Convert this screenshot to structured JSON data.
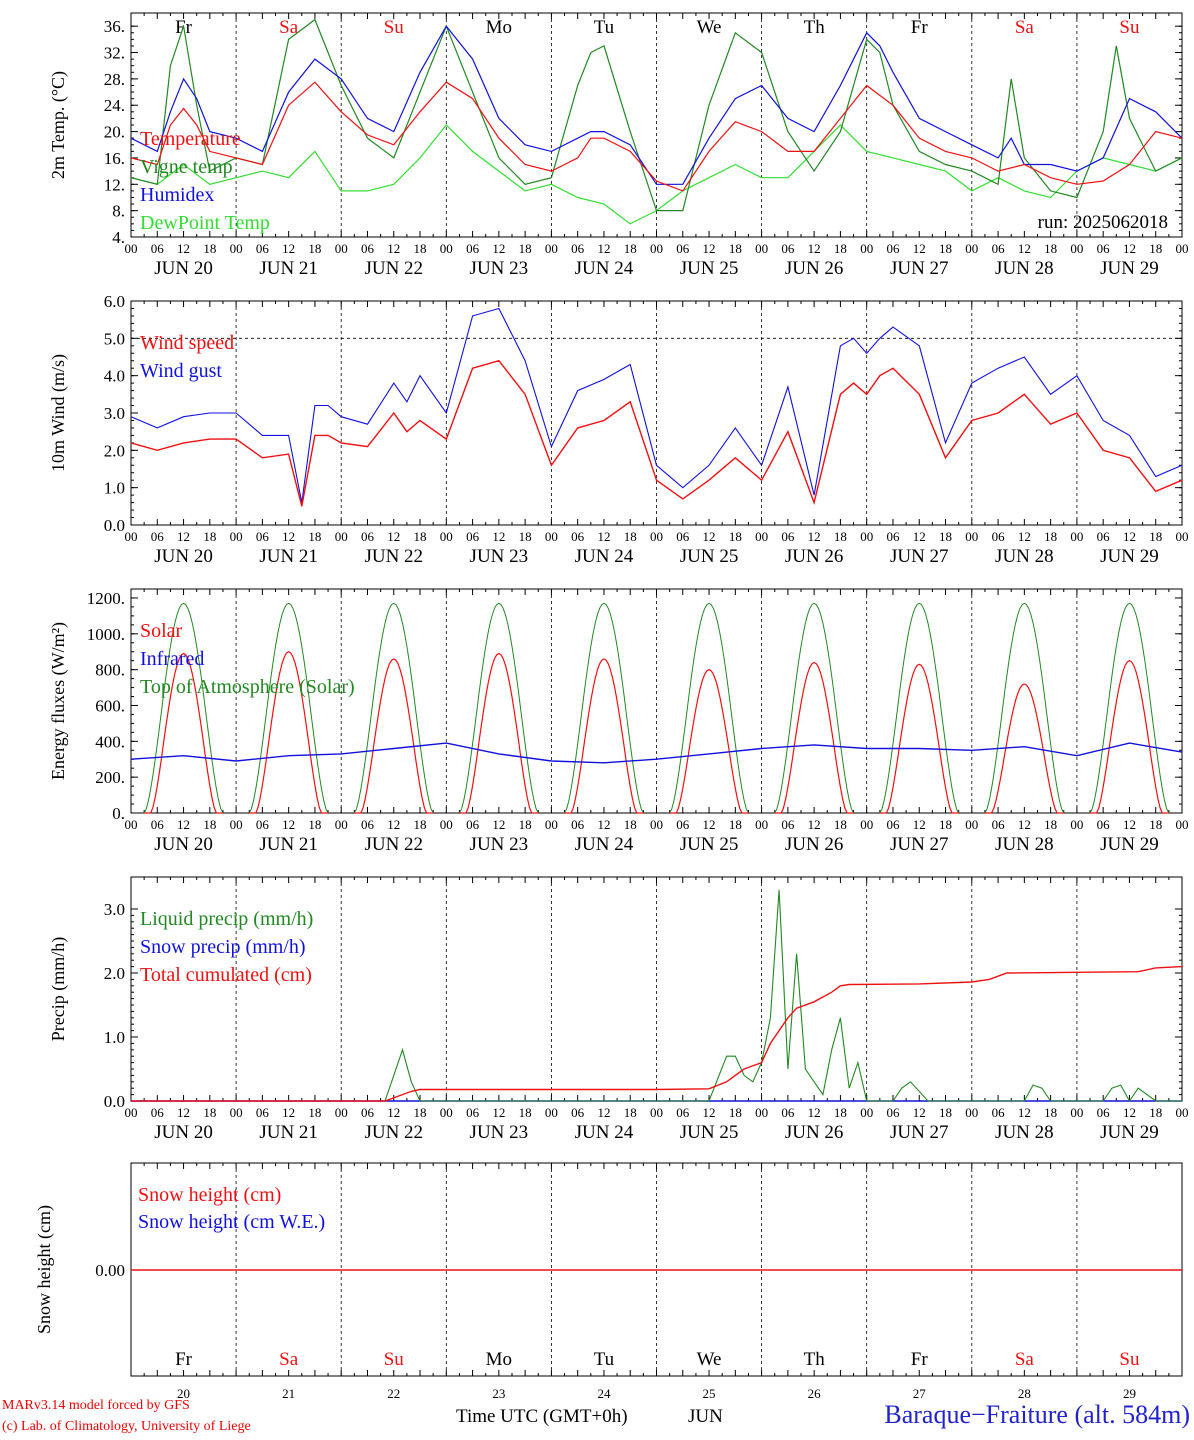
{
  "colors": {
    "red": "#ee1111",
    "green": "#228822",
    "blue": "#1111dd",
    "lime": "#33dd33",
    "black": "#000000"
  },
  "days": {
    "weekday_labels": [
      "Fr",
      "Sa",
      "Su",
      "Mo",
      "Tu",
      "We",
      "Th",
      "Fr",
      "Sa",
      "Su"
    ],
    "weekend_flags": [
      false,
      true,
      true,
      false,
      false,
      false,
      false,
      false,
      true,
      true
    ],
    "date_labels": [
      "JUN 20",
      "JUN 21",
      "JUN 22",
      "JUN 23",
      "JUN 24",
      "JUN 25",
      "JUN 26",
      "JUN 27",
      "JUN 28",
      "JUN 29"
    ],
    "hour_labels": [
      "00",
      "06",
      "12",
      "18"
    ],
    "last_hour_label": "00",
    "bottom_day_numbers": [
      "20",
      "21",
      "22",
      "23",
      "24",
      "25",
      "26",
      "27",
      "28",
      "29"
    ],
    "bottom_month": "JUN"
  },
  "footer": {
    "credit_line1": "MARv3.14 model forced by GFS",
    "credit_line2": "(c) Lab. of Climatology, University of Liege",
    "time_label": "Time UTC (GMT+0h)",
    "station": "Baraque−Fraiture (alt. 584m)"
  },
  "chart_data": [
    {
      "type": "line",
      "ylabel": "2m Temp. (°C)",
      "ylim": [
        4,
        38
      ],
      "yticks": [
        "4.",
        "8.",
        "12.",
        "16.",
        "20.",
        "24.",
        "28.",
        "32.",
        "36."
      ],
      "x_unit": "hours from Jun 20 00 UTC",
      "annotation": "run: 2025062018",
      "series": [
        {
          "name": "Temperature",
          "color": "red",
          "x": [
            0,
            6,
            9,
            12,
            15,
            18,
            24,
            30,
            36,
            42,
            48,
            54,
            60,
            66,
            72,
            78,
            84,
            90,
            96,
            102,
            105,
            108,
            114,
            120,
            126,
            132,
            138,
            144,
            150,
            156,
            162,
            168,
            174,
            180,
            186,
            192,
            198,
            204,
            210,
            216,
            222,
            228,
            234,
            240
          ],
          "y": [
            16,
            15,
            21,
            23.5,
            21,
            17,
            16,
            15,
            24,
            27.5,
            23,
            19.5,
            18,
            23,
            27.5,
            25,
            19,
            15,
            14,
            16,
            19,
            19,
            17,
            12.5,
            11,
            17,
            21.5,
            20,
            17,
            17,
            22,
            27,
            24,
            19,
            17,
            16,
            14,
            15,
            13,
            12,
            12.5,
            15,
            20,
            19
          ]
        },
        {
          "name": "Vigne temp",
          "color": "green",
          "x": [
            0,
            6,
            9,
            12,
            15,
            18,
            24,
            30,
            36,
            42,
            48,
            54,
            60,
            66,
            72,
            78,
            84,
            90,
            96,
            102,
            105,
            108,
            114,
            120,
            126,
            132,
            138,
            144,
            150,
            156,
            162,
            168,
            171,
            174,
            180,
            186,
            192,
            198,
            201,
            204,
            210,
            216,
            222,
            225,
            228,
            234,
            240
          ],
          "y": [
            13,
            12,
            30,
            36,
            24,
            14,
            16,
            15,
            34,
            37,
            27,
            19,
            16,
            26,
            36,
            26,
            16,
            12,
            13,
            27,
            32,
            33,
            20,
            8,
            8,
            24,
            35,
            32,
            20,
            14,
            20,
            34,
            32,
            24,
            17,
            15,
            14,
            12,
            28,
            16,
            11,
            10,
            20,
            33,
            22,
            14,
            16
          ]
        },
        {
          "name": "Humidex",
          "color": "blue",
          "x": [
            0,
            6,
            9,
            12,
            15,
            18,
            24,
            30,
            36,
            42,
            48,
            54,
            60,
            66,
            72,
            78,
            84,
            90,
            96,
            102,
            105,
            108,
            114,
            120,
            126,
            132,
            138,
            144,
            150,
            156,
            162,
            168,
            171,
            174,
            180,
            186,
            192,
            198,
            201,
            204,
            210,
            216,
            222,
            228,
            234,
            240
          ],
          "y": [
            19,
            17,
            23,
            28,
            25,
            20,
            19,
            17,
            26,
            31,
            28,
            22,
            20,
            29,
            36,
            31,
            22,
            18,
            17,
            19,
            20,
            20,
            18,
            12,
            12,
            19,
            25,
            27,
            22,
            20,
            27,
            35,
            33,
            29,
            22,
            20,
            18,
            16,
            19,
            15,
            15,
            14,
            16,
            25,
            23,
            19
          ]
        },
        {
          "name": "DewPoint Temp",
          "color": "lime",
          "x": [
            0,
            6,
            12,
            18,
            24,
            30,
            36,
            42,
            48,
            54,
            60,
            66,
            72,
            78,
            84,
            90,
            96,
            102,
            108,
            114,
            120,
            126,
            132,
            138,
            144,
            150,
            156,
            162,
            168,
            174,
            180,
            186,
            192,
            198,
            204,
            210,
            216,
            222,
            228,
            234,
            240
          ],
          "y": [
            13,
            12,
            15,
            12,
            13,
            14,
            13,
            17,
            11,
            11,
            12,
            16,
            21,
            17,
            14,
            11,
            12,
            10,
            9,
            6,
            8,
            11,
            13,
            15,
            13,
            13,
            17,
            21,
            17,
            16,
            15,
            14,
            11,
            13,
            11,
            10,
            14,
            16,
            15,
            14,
            16
          ]
        }
      ]
    },
    {
      "type": "line",
      "ylabel": "10m Wind (m/s)",
      "ylim": [
        0,
        6
      ],
      "yticks": [
        "0.0",
        "1.0",
        "2.0",
        "3.0",
        "4.0",
        "5.0",
        "6.0"
      ],
      "ref_line": 5,
      "series": [
        {
          "name": "Wind speed",
          "color": "red",
          "x": [
            0,
            6,
            12,
            18,
            24,
            30,
            36,
            39,
            42,
            45,
            48,
            54,
            60,
            63,
            66,
            72,
            78,
            84,
            90,
            96,
            102,
            108,
            114,
            120,
            126,
            132,
            138,
            144,
            150,
            156,
            162,
            165,
            168,
            171,
            174,
            180,
            186,
            192,
            198,
            204,
            210,
            216,
            222,
            228,
            234,
            240
          ],
          "y": [
            2.2,
            2.0,
            2.2,
            2.3,
            2.3,
            1.8,
            1.9,
            0.5,
            2.4,
            2.4,
            2.2,
            2.1,
            3.0,
            2.5,
            2.8,
            2.3,
            4.2,
            4.4,
            3.5,
            1.6,
            2.6,
            2.8,
            3.3,
            1.2,
            0.7,
            1.2,
            1.8,
            1.2,
            2.5,
            0.6,
            3.5,
            3.8,
            3.5,
            4.0,
            4.2,
            3.5,
            1.8,
            2.8,
            3.0,
            3.5,
            2.7,
            3.0,
            2.0,
            1.8,
            0.9,
            1.2
          ]
        },
        {
          "name": "Wind gust",
          "color": "blue",
          "x": [
            0,
            6,
            12,
            18,
            24,
            30,
            36,
            39,
            42,
            45,
            48,
            54,
            60,
            63,
            66,
            72,
            78,
            84,
            90,
            96,
            102,
            108,
            114,
            120,
            126,
            132,
            138,
            144,
            150,
            156,
            162,
            165,
            168,
            171,
            174,
            180,
            186,
            192,
            198,
            204,
            210,
            216,
            222,
            228,
            234,
            240
          ],
          "y": [
            2.9,
            2.6,
            2.9,
            3.0,
            3.0,
            2.4,
            2.4,
            0.6,
            3.2,
            3.2,
            2.9,
            2.7,
            3.8,
            3.3,
            4.0,
            3.0,
            5.6,
            5.8,
            4.4,
            2.1,
            3.6,
            3.9,
            4.3,
            1.6,
            1.0,
            1.6,
            2.6,
            1.6,
            3.7,
            0.8,
            4.8,
            5.0,
            4.6,
            5.0,
            5.3,
            4.8,
            2.2,
            3.8,
            4.2,
            4.5,
            3.5,
            4.0,
            2.8,
            2.4,
            1.3,
            1.6
          ]
        }
      ]
    },
    {
      "type": "line",
      "ylabel": "Energy fluxes (W/m²)",
      "ylim": [
        0,
        1250
      ],
      "yticks": [
        "0.",
        "200.",
        "400.",
        "600.",
        "800.",
        "1000.",
        "1200."
      ],
      "solar_peaks": [
        890,
        900,
        860,
        890,
        860,
        800,
        840,
        830,
        720,
        850
      ],
      "infrared": {
        "x": [
          0,
          12,
          24,
          36,
          48,
          60,
          72,
          84,
          96,
          108,
          120,
          132,
          144,
          156,
          168,
          180,
          192,
          204,
          216,
          228,
          240
        ],
        "y": [
          300,
          320,
          290,
          320,
          330,
          360,
          390,
          330,
          290,
          280,
          300,
          330,
          360,
          380,
          360,
          360,
          350,
          370,
          320,
          390,
          340
        ]
      },
      "series": [
        {
          "name": "Solar",
          "color": "red"
        },
        {
          "name": "Infrared",
          "color": "blue"
        },
        {
          "name": "Top of Atmosphere (Solar)",
          "color": "green",
          "peak": 1170
        }
      ]
    },
    {
      "type": "line",
      "ylabel": "Precip (mm/h)",
      "ylim": [
        0,
        3.5
      ],
      "yticks": [
        "0.0",
        "1.0",
        "2.0",
        "3.0"
      ],
      "series": [
        {
          "name": "Liquid precip (mm/h)",
          "color": "green",
          "x": [
            0,
            58,
            60,
            62,
            64,
            66,
            132,
            136,
            138,
            140,
            142,
            144,
            146,
            148,
            150,
            152,
            154,
            156,
            158,
            160,
            162,
            164,
            166,
            168,
            172,
            174,
            176,
            178,
            182,
            184,
            186,
            204,
            206,
            208,
            210,
            222,
            224,
            226,
            228,
            230,
            234,
            236,
            240
          ],
          "y": [
            0,
            0,
            0.4,
            0.8,
            0.3,
            0,
            0,
            0.7,
            0.7,
            0.4,
            0.3,
            0.6,
            1.3,
            3.3,
            0.5,
            2.3,
            0.5,
            0.3,
            0.1,
            0.8,
            1.3,
            0.2,
            0.6,
            0,
            0,
            0,
            0.2,
            0.3,
            0,
            0,
            0,
            0,
            0.25,
            0.2,
            0,
            0,
            0.2,
            0.25,
            0,
            0.2,
            0,
            0,
            0
          ]
        },
        {
          "name": "Snow precip (mm/h)",
          "color": "blue",
          "x": [
            0,
            240
          ],
          "y": [
            0,
            0
          ]
        },
        {
          "name": "Total cumulated (cm)",
          "color": "red",
          "x": [
            0,
            58,
            62,
            64,
            66,
            120,
            132,
            136,
            140,
            144,
            146,
            148,
            150,
            152,
            156,
            160,
            162,
            164,
            180,
            192,
            196,
            200,
            230,
            234,
            240
          ],
          "y": [
            0,
            0,
            0.1,
            0.15,
            0.18,
            0.18,
            0.19,
            0.3,
            0.5,
            0.6,
            0.9,
            1.1,
            1.3,
            1.45,
            1.55,
            1.7,
            1.8,
            1.82,
            1.83,
            1.86,
            1.9,
            2.0,
            2.02,
            2.08,
            2.1
          ]
        }
      ]
    },
    {
      "type": "line",
      "ylabel": "Snow height (cm)",
      "yticks": [
        "0.00"
      ],
      "series": [
        {
          "name": "Snow height (cm)",
          "color": "red",
          "x": [
            0,
            240
          ],
          "y": [
            0,
            0
          ]
        },
        {
          "name": "Snow height (cm W.E.)",
          "color": "blue"
        }
      ]
    }
  ]
}
